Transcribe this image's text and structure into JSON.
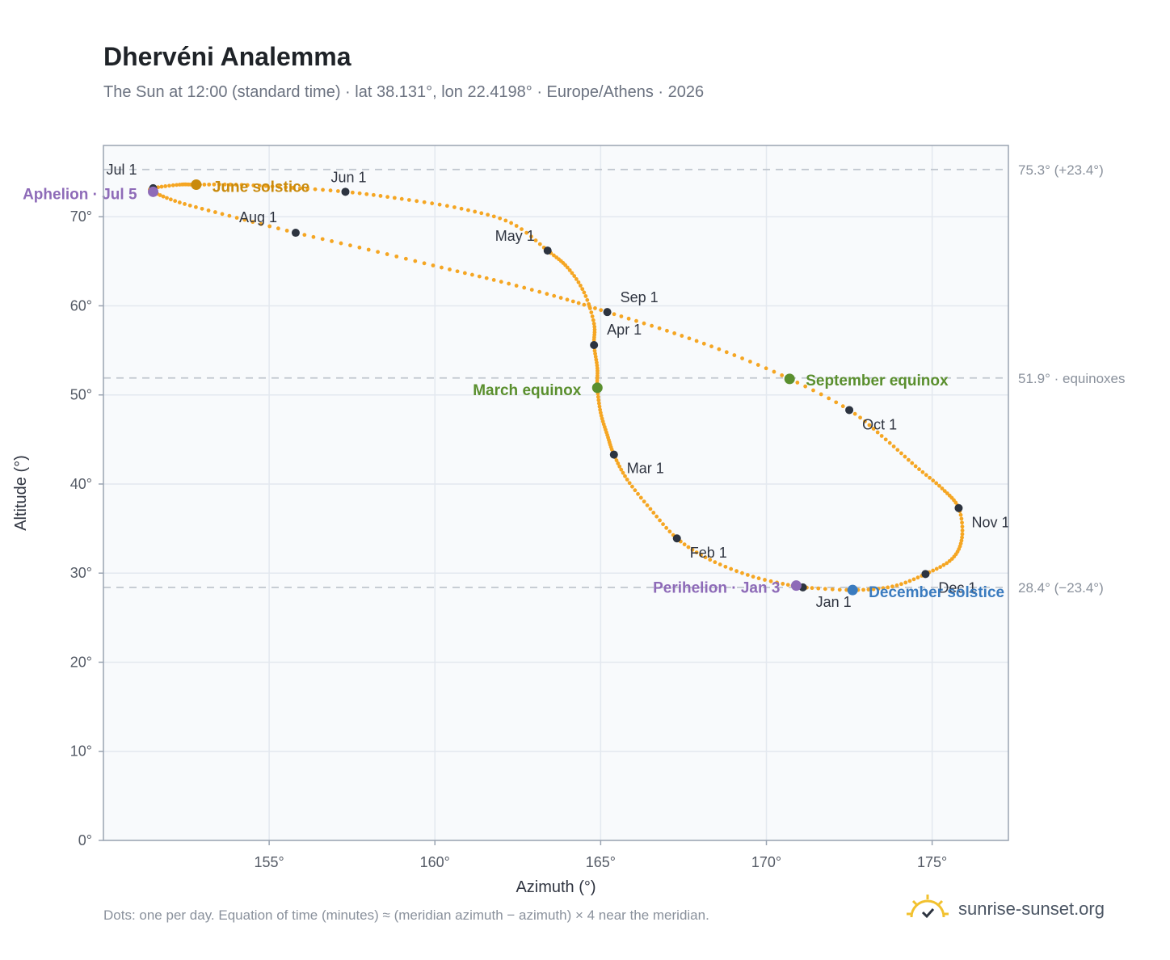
{
  "header": {
    "title": "Dhervéni Analemma",
    "subtitle": "The Sun at 12:00 (standard time) · lat 38.131°, lon 22.4198° · Europe/Athens · 2026"
  },
  "footer": {
    "note": "Dots: one per day. Equation of time (minutes) ≈ (meridian azimuth − azimuth) × 4 near the meridian.",
    "brand": "sunrise-sunset.org"
  },
  "colors": {
    "curve": "#f5a623",
    "month_dot": "#2d3440",
    "solstice_june": "#c98a0c",
    "equinox": "#5a8f2e",
    "solstice_december": "#3a7bbf",
    "apsis": "#8e6bb8",
    "plot_bg": "#f8fafc",
    "grid": "#e3e8ef",
    "reference_line": "#c0c6ce"
  },
  "chart_data": {
    "type": "scatter",
    "xlabel": "Azimuth (°)",
    "ylabel": "Altitude (°)",
    "xlim": [
      150,
      177.3
    ],
    "ylim": [
      0,
      78
    ],
    "xticks": [
      155,
      160,
      165,
      170,
      175
    ],
    "yticks": [
      0,
      10,
      20,
      30,
      40,
      50,
      60,
      70
    ],
    "xtick_labels": [
      "155°",
      "160°",
      "165°",
      "170°",
      "175°"
    ],
    "ytick_labels": [
      "0°",
      "10°",
      "20°",
      "30°",
      "40°",
      "50°",
      "60°",
      "70°"
    ],
    "grid": true,
    "reference_lines": [
      {
        "y": 75.3,
        "label": "75.3° (+23.4°)"
      },
      {
        "y": 51.9,
        "label": "51.9° · equinoxes"
      },
      {
        "y": 28.4,
        "label": "28.4° (−23.4°)"
      }
    ],
    "series": [
      {
        "points": [
          {
            "x": 171.1,
            "y": 28.4
          },
          {
            "x": 172.6,
            "y": 28.1
          },
          {
            "x": 173.8,
            "y": 28.5
          },
          {
            "x": 174.8,
            "y": 29.9
          },
          {
            "x": 175.6,
            "y": 31.6
          },
          {
            "x": 175.9,
            "y": 34.0
          },
          {
            "x": 175.8,
            "y": 37.3
          },
          {
            "x": 175.3,
            "y": 39.5
          },
          {
            "x": 174.5,
            "y": 42.0
          },
          {
            "x": 173.6,
            "y": 45.0
          },
          {
            "x": 172.5,
            "y": 48.3
          },
          {
            "x": 170.7,
            "y": 51.8
          },
          {
            "x": 168.8,
            "y": 54.8
          },
          {
            "x": 167.0,
            "y": 57.2
          },
          {
            "x": 165.2,
            "y": 59.3
          },
          {
            "x": 163.8,
            "y": 60.9
          },
          {
            "x": 162.0,
            "y": 62.7
          },
          {
            "x": 160.2,
            "y": 64.3
          },
          {
            "x": 158.0,
            "y": 66.3
          },
          {
            "x": 155.8,
            "y": 68.2
          },
          {
            "x": 153.8,
            "y": 70.1
          },
          {
            "x": 152.3,
            "y": 71.6
          },
          {
            "x": 151.5,
            "y": 72.8
          },
          {
            "x": 151.5,
            "y": 73.2
          },
          {
            "x": 152.3,
            "y": 73.6
          },
          {
            "x": 152.8,
            "y": 73.6
          },
          {
            "x": 154.0,
            "y": 73.6
          },
          {
            "x": 155.5,
            "y": 73.3
          },
          {
            "x": 157.3,
            "y": 72.8
          },
          {
            "x": 159.0,
            "y": 72.0
          },
          {
            "x": 160.8,
            "y": 70.9
          },
          {
            "x": 162.3,
            "y": 69.3
          },
          {
            "x": 163.4,
            "y": 66.2
          },
          {
            "x": 164.0,
            "y": 64.3
          },
          {
            "x": 164.5,
            "y": 61.5
          },
          {
            "x": 164.8,
            "y": 58.0
          },
          {
            "x": 164.8,
            "y": 55.6
          },
          {
            "x": 164.9,
            "y": 53.0
          },
          {
            "x": 164.9,
            "y": 50.8
          },
          {
            "x": 165.0,
            "y": 48.0
          },
          {
            "x": 165.2,
            "y": 45.5
          },
          {
            "x": 165.4,
            "y": 43.3
          },
          {
            "x": 165.8,
            "y": 40.5
          },
          {
            "x": 166.5,
            "y": 37.2
          },
          {
            "x": 167.3,
            "y": 33.9
          },
          {
            "x": 168.3,
            "y": 31.5
          },
          {
            "x": 169.6,
            "y": 29.6
          },
          {
            "x": 170.9,
            "y": 28.5
          },
          {
            "x": 171.1,
            "y": 28.4
          }
        ]
      }
    ],
    "month_markers": [
      {
        "label": "Jan 1",
        "x": 171.1,
        "y": 28.4
      },
      {
        "label": "Feb 1",
        "x": 167.3,
        "y": 33.9
      },
      {
        "label": "Mar 1",
        "x": 165.4,
        "y": 43.3
      },
      {
        "label": "Apr 1",
        "x": 164.8,
        "y": 55.6
      },
      {
        "label": "May 1",
        "x": 163.4,
        "y": 66.2
      },
      {
        "label": "Jun 1",
        "x": 157.3,
        "y": 72.8
      },
      {
        "label": "Jul 1",
        "x": 151.5,
        "y": 73.2
      },
      {
        "label": "Aug 1",
        "x": 155.8,
        "y": 68.2
      },
      {
        "label": "Sep 1",
        "x": 165.2,
        "y": 59.3
      },
      {
        "label": "Oct 1",
        "x": 172.5,
        "y": 48.3
      },
      {
        "label": "Nov 1",
        "x": 175.8,
        "y": 37.3
      },
      {
        "label": "Dec 1",
        "x": 174.8,
        "y": 29.9
      }
    ],
    "events": [
      {
        "label": "June solstice",
        "x": 152.8,
        "y": 73.6,
        "kind": "solstice_june"
      },
      {
        "label": "September equinox",
        "x": 170.7,
        "y": 51.8,
        "kind": "equinox"
      },
      {
        "label": "March equinox",
        "x": 164.9,
        "y": 50.8,
        "kind": "equinox"
      },
      {
        "label": "December solstice",
        "x": 172.6,
        "y": 28.1,
        "kind": "solstice_december"
      },
      {
        "label": "Aphelion · Jul 5",
        "x": 151.5,
        "y": 72.8,
        "kind": "apsis"
      },
      {
        "label": "Perihelion · Jan 3",
        "x": 170.9,
        "y": 28.6,
        "kind": "apsis"
      }
    ]
  }
}
